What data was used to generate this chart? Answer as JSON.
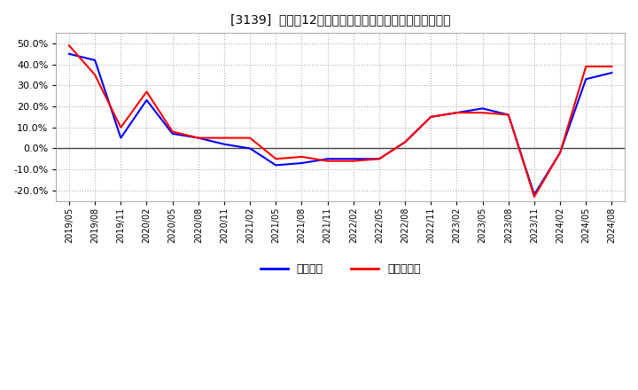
{
  "title": "[3139]  利益の12か月移動合計の対前年同期増減率の推移",
  "xlabel_labels": [
    "2019/05",
    "2019/08",
    "2019/11",
    "2020/02",
    "2020/05",
    "2020/08",
    "2020/11",
    "2021/02",
    "2021/05",
    "2021/08",
    "2021/11",
    "2022/02",
    "2022/05",
    "2022/08",
    "2022/11",
    "2023/02",
    "2023/05",
    "2023/08",
    "2023/11",
    "2024/02",
    "2024/05",
    "2024/08"
  ],
  "ylim": [
    -0.25,
    0.55
  ],
  "yticks": [
    -0.2,
    -0.1,
    0.0,
    0.1,
    0.2,
    0.3,
    0.4,
    0.5
  ],
  "legend_labels": [
    "経常利益",
    "当期純利益"
  ],
  "line_colors": [
    "#0000ff",
    "#ff0000"
  ],
  "background_color": "#ffffff",
  "plot_bg_color": "#ffffff",
  "grid_color": "#b0b0b0",
  "zero_line_color": "#444444",
  "operating_profit": [
    0.45,
    0.42,
    0.05,
    0.23,
    0.07,
    0.05,
    0.02,
    0.0,
    -0.08,
    -0.07,
    -0.05,
    -0.05,
    -0.05,
    0.03,
    0.15,
    0.17,
    0.19,
    0.16,
    -0.22,
    -0.02,
    0.33,
    0.36
  ],
  "net_profit": [
    0.49,
    0.35,
    0.1,
    0.27,
    0.08,
    0.05,
    0.05,
    0.05,
    -0.05,
    -0.04,
    -0.06,
    -0.06,
    -0.05,
    0.03,
    0.15,
    0.17,
    0.17,
    0.16,
    -0.23,
    -0.02,
    0.39,
    0.39
  ]
}
